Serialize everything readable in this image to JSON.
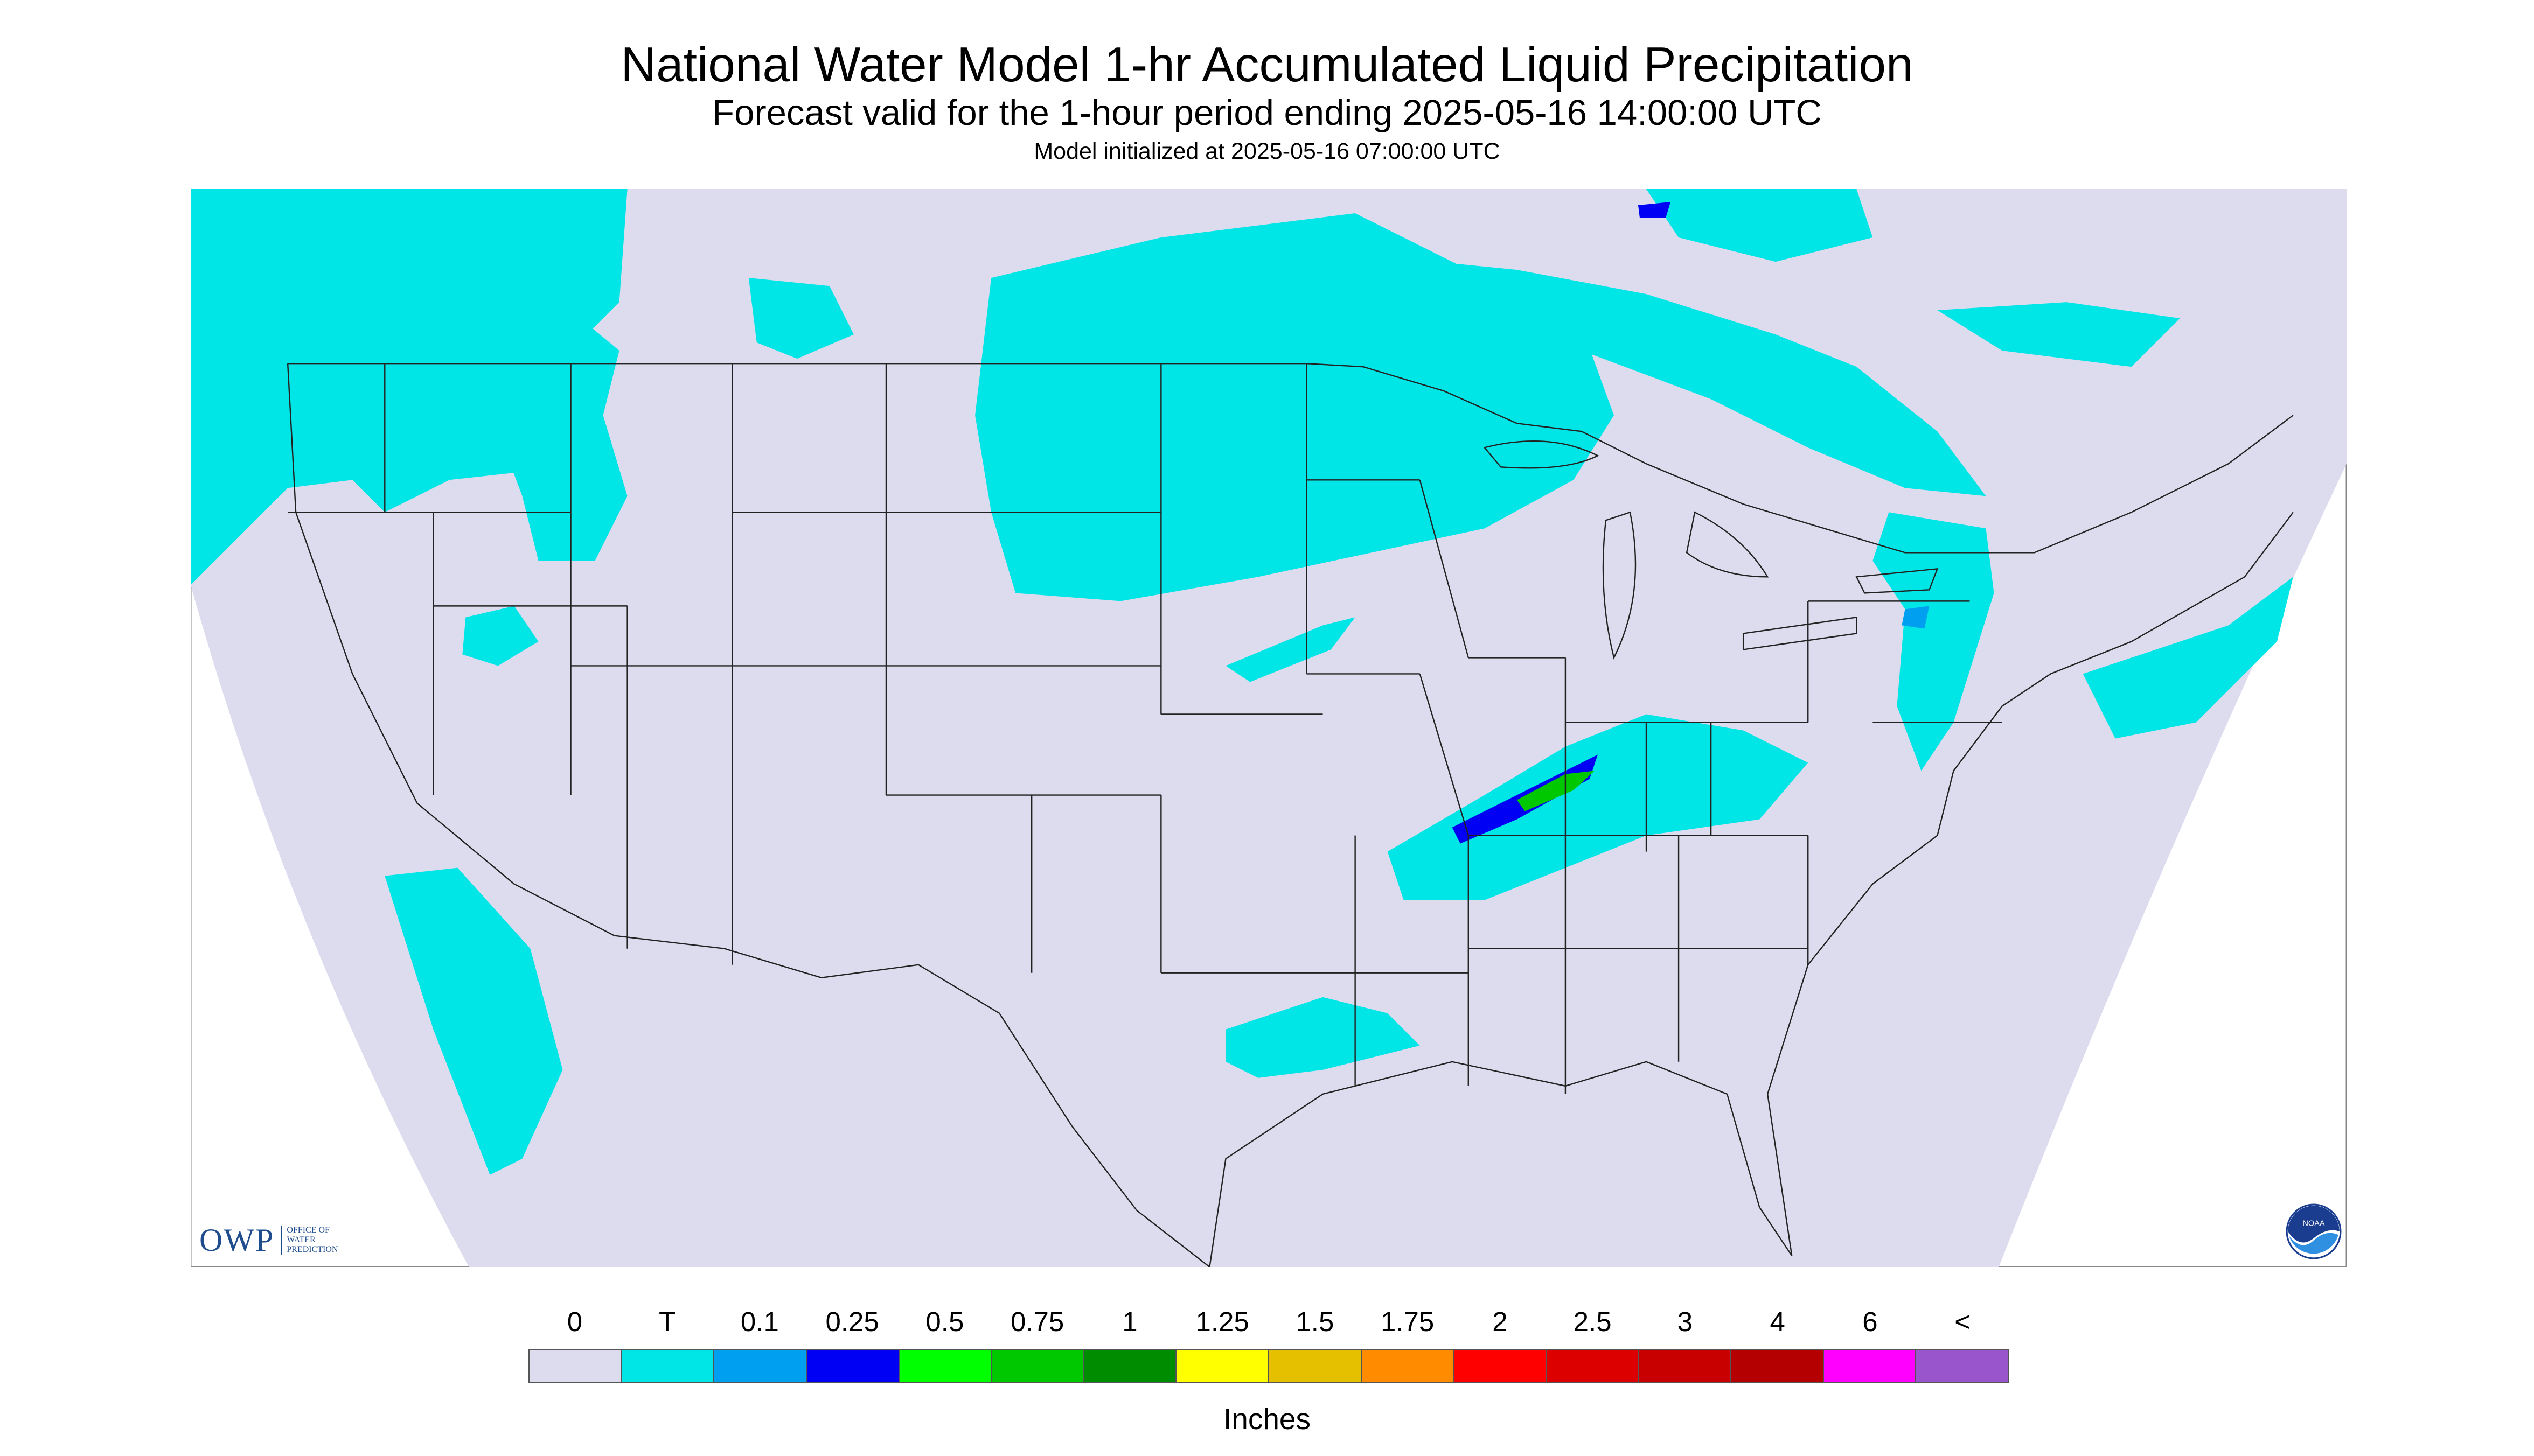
{
  "header": {
    "title": "National Water Model 1-hr Accumulated Liquid Precipitation",
    "subtitle": "Forecast valid for the 1-hour period ending 2025-05-16 14:00:00 UTC",
    "init": "Model initialized at 2025-05-16 07:00:00 UTC"
  },
  "colors": {
    "background": "#ffffff",
    "map_fill": "#dcdcee",
    "precip_trace": "#00e5e5",
    "precip_010": "#009ff0",
    "precip_025": "#0000f5",
    "precip_050": "#00ff00",
    "precip_075": "#00c800",
    "boundary": "#222222"
  },
  "legend": {
    "labels": [
      "0",
      "T",
      "0.1",
      "0.25",
      "0.5",
      "0.75",
      "1",
      "1.25",
      "1.5",
      "1.75",
      "2",
      "2.5",
      "3",
      "4",
      "6",
      "<"
    ],
    "colors": [
      "#dcdcee",
      "#00e5e5",
      "#009ff0",
      "#0000f5",
      "#00ff00",
      "#00c800",
      "#008c00",
      "#ffff00",
      "#e5c000",
      "#ff8c00",
      "#ff0000",
      "#dd0000",
      "#c80000",
      "#b40000",
      "#ff00ff",
      "#9955cc"
    ],
    "units": "Inches"
  },
  "logos": {
    "owp_mark": "OWP",
    "owp_line1": "OFFICE OF",
    "owp_line2": "WATER",
    "owp_line3": "PREDICTION",
    "noaa": "NOAA"
  }
}
